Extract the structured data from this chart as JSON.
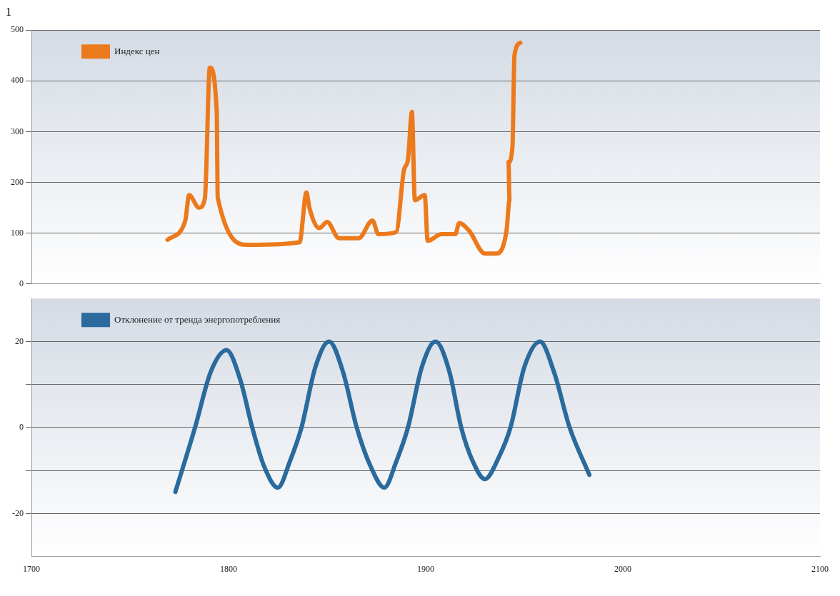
{
  "chart_data": [
    {
      "type": "line",
      "annotations": [
        "1"
      ],
      "xlim": [
        1700,
        2100
      ],
      "xticks": [
        1700,
        1800,
        1900,
        2000,
        2100
      ],
      "ylim": [
        0,
        500
      ],
      "yticks": [
        0,
        100,
        200,
        300,
        400,
        500
      ],
      "tick_labels": "y",
      "grid": "y",
      "legend": "top left",
      "marker": "none",
      "line_style": "solid",
      "series": [
        {
          "name": "Индекс цен",
          "color": "#ec7a1c",
          "x": [
            1769,
            1778,
            1780,
            1785,
            1788,
            1790.5,
            1794,
            1794.5,
            1810,
            1836,
            1839.5,
            1841,
            1846,
            1850,
            1856,
            1866,
            1873,
            1876,
            1885,
            1889,
            1891,
            1893,
            1894.5,
            1899.5,
            1901,
            1908,
            1915,
            1917,
            1922,
            1930,
            1936,
            1941,
            1942.5,
            1942,
            1944,
            1945,
            1948
          ],
          "values": [
            87,
            124,
            175,
            150,
            169,
            426,
            339,
            170,
            77,
            82,
            180,
            150,
            110,
            122,
            90,
            90,
            125,
            98,
            102,
            225,
            245,
            339,
            165,
            175,
            85,
            98,
            98,
            120,
            105,
            60,
            60,
            105,
            165,
            240,
            270,
            450,
            475
          ]
        }
      ]
    },
    {
      "type": "line",
      "xlim": [
        1700,
        2100
      ],
      "xticks": [
        1700,
        1800,
        1900,
        2000,
        2100
      ],
      "ylim": [
        -30,
        30
      ],
      "yticks": [
        -20,
        {
          "value": -10,
          "label": null
        },
        0,
        {
          "value": 10,
          "label": null
        },
        20
      ],
      "grid": "y",
      "legend": "top left",
      "marker": "none",
      "line_style": "solid",
      "series": [
        {
          "name": "Отклонение от тренда энергопотребления",
          "color": "#2a6a9c",
          "x": [
            1773,
            1783,
            1791,
            1799,
            1806,
            1812,
            1818,
            1825,
            1831,
            1837,
            1844,
            1851,
            1858,
            1865,
            1872,
            1879,
            1885,
            1891,
            1898,
            1905,
            1912,
            1918,
            1924,
            1930,
            1937,
            1943,
            1950,
            1958,
            1965,
            1973,
            1983
          ],
          "values": [
            -15,
            0,
            13,
            18,
            11,
            0,
            -9,
            -14,
            -8,
            0,
            14,
            20,
            13,
            0,
            -9,
            -14,
            -8,
            0,
            14,
            20,
            13,
            0,
            -8,
            -12,
            -7,
            0,
            14,
            20,
            13,
            0,
            -11
          ]
        }
      ]
    }
  ]
}
